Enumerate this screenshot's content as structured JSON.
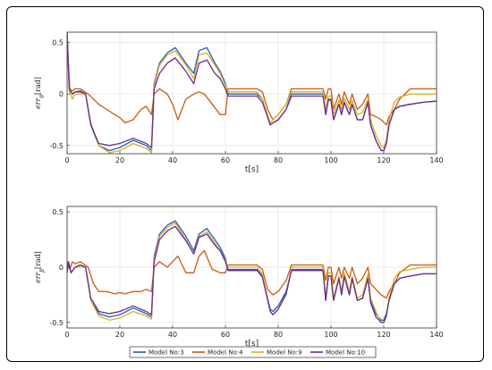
{
  "chart_data": [
    {
      "type": "line",
      "ylabel": "err_θ[rad]",
      "ylabel_parts": {
        "base": "err",
        "sub": "θ",
        "unit": "[rad]"
      },
      "xlabel": "t[s]",
      "xlim": [
        0,
        140
      ],
      "ylim": [
        -0.58,
        0.6
      ],
      "xticks": [
        0,
        20,
        40,
        60,
        80,
        100,
        120,
        140
      ],
      "yticks": [
        -0.5,
        0,
        0.5
      ],
      "grid": true,
      "series": [
        {
          "name": "Model No:3",
          "color": "#1f5fbf",
          "x": [
            0,
            0.8,
            2,
            3,
            5,
            7,
            9,
            12,
            16,
            20,
            25,
            30,
            32,
            33,
            35,
            38,
            41,
            45,
            48,
            50,
            53,
            56,
            58,
            60,
            61,
            64,
            68,
            72,
            74,
            77,
            78,
            80,
            83,
            85,
            97,
            98,
            99,
            100,
            101,
            103,
            104,
            105,
            107,
            108,
            110,
            112,
            114,
            115,
            117,
            119,
            120,
            121,
            122,
            124,
            126,
            130,
            135,
            140
          ],
          "y": [
            0.6,
            0.05,
            0,
            0.02,
            0.03,
            0,
            -0.3,
            -0.5,
            -0.55,
            -0.52,
            -0.45,
            -0.5,
            -0.55,
            0.1,
            0.3,
            0.4,
            0.45,
            0.3,
            0.2,
            0.42,
            0.45,
            0.3,
            0.22,
            0.1,
            0,
            0,
            0,
            0,
            -0.05,
            -0.3,
            -0.28,
            -0.25,
            -0.15,
            0,
            0,
            -0.2,
            -0.05,
            -0.05,
            -0.25,
            -0.1,
            -0.2,
            -0.08,
            -0.2,
            -0.1,
            -0.25,
            -0.25,
            -0.08,
            -0.3,
            -0.45,
            -0.55,
            -0.55,
            -0.48,
            -0.3,
            -0.15,
            -0.12,
            -0.1,
            -0.08,
            -0.07
          ]
        },
        {
          "name": "Model No:4",
          "color": "#c95a14",
          "x": [
            0,
            1,
            2,
            3,
            5,
            8,
            10,
            12,
            15,
            18,
            20,
            22,
            25,
            28,
            30,
            32,
            33,
            35,
            38,
            40,
            42,
            45,
            48,
            50,
            52,
            55,
            58,
            60,
            61,
            64,
            68,
            72,
            74,
            76,
            78,
            80,
            83,
            85,
            97,
            98,
            99,
            100,
            101,
            103,
            104,
            105,
            107,
            108,
            110,
            112,
            114,
            115,
            117,
            119,
            121,
            122,
            124,
            126,
            130,
            135,
            140
          ],
          "y": [
            0.55,
            0.05,
            0.03,
            0.05,
            0.05,
            0,
            -0.05,
            -0.1,
            -0.15,
            -0.2,
            -0.23,
            -0.28,
            -0.25,
            -0.15,
            -0.12,
            -0.2,
            0,
            0.05,
            0,
            -0.1,
            -0.25,
            -0.05,
            0,
            0.02,
            0,
            -0.1,
            -0.2,
            -0.2,
            0.05,
            0.05,
            0.05,
            0.05,
            0.02,
            -0.15,
            -0.25,
            -0.2,
            -0.1,
            0.05,
            0.05,
            -0.05,
            0.05,
            0.05,
            -0.15,
            0,
            -0.1,
            0.02,
            -0.1,
            0,
            -0.15,
            -0.1,
            0,
            -0.2,
            -0.22,
            -0.25,
            -0.3,
            -0.22,
            -0.15,
            -0.05,
            0.05,
            0.05,
            0.05
          ]
        },
        {
          "name": "Model No:9",
          "color": "#d8b11e",
          "x": [
            0,
            0.8,
            2,
            3,
            5,
            7,
            9,
            12,
            16,
            20,
            25,
            30,
            32,
            33,
            35,
            38,
            41,
            45,
            48,
            50,
            53,
            56,
            58,
            60,
            61,
            64,
            68,
            72,
            74,
            77,
            78,
            80,
            83,
            85,
            97,
            98,
            99,
            100,
            101,
            103,
            104,
            105,
            107,
            108,
            110,
            112,
            114,
            115,
            117,
            119,
            120,
            121,
            122,
            124,
            126,
            130,
            135,
            140
          ],
          "y": [
            0.6,
            0.03,
            -0.05,
            0,
            0,
            0,
            -0.28,
            -0.5,
            -0.57,
            -0.55,
            -0.48,
            -0.53,
            -0.57,
            0.08,
            0.28,
            0.38,
            0.42,
            0.28,
            0.15,
            0.38,
            0.4,
            0.28,
            0.2,
            0.08,
            0.02,
            0.02,
            0.02,
            0.02,
            -0.05,
            -0.28,
            -0.25,
            -0.2,
            -0.1,
            0.02,
            0.02,
            -0.15,
            -0.02,
            -0.02,
            -0.2,
            -0.06,
            -0.15,
            -0.04,
            -0.15,
            -0.06,
            -0.2,
            -0.18,
            -0.05,
            -0.25,
            -0.4,
            -0.5,
            -0.52,
            -0.45,
            -0.25,
            -0.08,
            -0.03,
            0,
            0,
            0
          ]
        },
        {
          "name": "Model No:10",
          "color": "#6a2c91",
          "x": [
            0,
            0.8,
            2,
            3,
            5,
            7,
            9,
            12,
            16,
            20,
            25,
            30,
            32,
            33,
            35,
            38,
            41,
            45,
            48,
            50,
            53,
            56,
            58,
            60,
            61,
            64,
            68,
            72,
            74,
            77,
            78,
            80,
            83,
            85,
            97,
            98,
            99,
            100,
            101,
            103,
            104,
            105,
            107,
            108,
            110,
            112,
            114,
            115,
            117,
            119,
            120,
            121,
            122,
            124,
            126,
            130,
            135,
            140
          ],
          "y": [
            0.6,
            0.05,
            0,
            0.02,
            0.02,
            0,
            -0.3,
            -0.48,
            -0.5,
            -0.48,
            -0.43,
            -0.48,
            -0.52,
            0.05,
            0.2,
            0.3,
            0.35,
            0.22,
            0.1,
            0.3,
            0.33,
            0.2,
            0.15,
            0.05,
            -0.02,
            -0.02,
            -0.02,
            -0.02,
            -0.08,
            -0.3,
            -0.28,
            -0.25,
            -0.15,
            -0.02,
            -0.02,
            -0.2,
            -0.06,
            -0.06,
            -0.25,
            -0.1,
            -0.2,
            -0.08,
            -0.2,
            -0.1,
            -0.25,
            -0.25,
            -0.08,
            -0.3,
            -0.45,
            -0.55,
            -0.55,
            -0.48,
            -0.3,
            -0.15,
            -0.12,
            -0.1,
            -0.08,
            -0.07
          ]
        }
      ]
    },
    {
      "type": "line",
      "ylabel": "err_β[rad]",
      "ylabel_parts": {
        "base": "err",
        "sub": "β",
        "unit": "[rad]"
      },
      "xlabel": "t[s]",
      "xlim": [
        0,
        140
      ],
      "ylim": [
        -0.55,
        0.55
      ],
      "xticks": [
        0,
        20,
        40,
        60,
        80,
        100,
        120,
        140
      ],
      "yticks": [
        -0.5,
        0,
        0.5
      ],
      "grid": true,
      "series": [
        {
          "name": "Model No:3",
          "color": "#1f5fbf",
          "x": [
            0,
            0.5,
            1.5,
            3,
            5,
            7,
            9,
            12,
            16,
            20,
            25,
            30,
            32,
            33,
            35,
            38,
            41,
            45,
            48,
            50,
            53,
            56,
            58,
            60,
            61,
            64,
            68,
            72,
            74,
            77,
            78,
            80,
            83,
            85,
            97,
            98,
            99,
            100,
            101,
            103,
            104,
            105,
            107,
            108,
            110,
            112,
            114,
            115,
            117,
            119,
            120,
            121,
            122,
            124,
            126,
            130,
            135,
            140
          ],
          "y": [
            -0.05,
            0.05,
            -0.05,
            0,
            0.02,
            0,
            -0.3,
            -0.42,
            -0.45,
            -0.43,
            -0.37,
            -0.42,
            -0.45,
            0.1,
            0.3,
            0.38,
            0.42,
            0.28,
            0.15,
            0.3,
            0.35,
            0.25,
            0.18,
            0.08,
            -0.02,
            -0.02,
            -0.02,
            -0.02,
            -0.08,
            -0.38,
            -0.4,
            -0.35,
            -0.22,
            -0.02,
            -0.02,
            -0.3,
            -0.08,
            -0.08,
            -0.3,
            -0.1,
            -0.25,
            -0.08,
            -0.25,
            -0.1,
            -0.3,
            -0.28,
            -0.1,
            -0.3,
            -0.42,
            -0.48,
            -0.48,
            -0.42,
            -0.3,
            -0.15,
            -0.1,
            -0.08,
            -0.06,
            -0.06
          ]
        },
        {
          "name": "Model No:4",
          "color": "#c95a14",
          "x": [
            0,
            1,
            2,
            3,
            5,
            8,
            10,
            12,
            15,
            18,
            20,
            22,
            25,
            28,
            30,
            32,
            33,
            35,
            38,
            40,
            42,
            45,
            48,
            50,
            52,
            55,
            58,
            60,
            61,
            64,
            68,
            72,
            74,
            76,
            78,
            80,
            83,
            85,
            97,
            98,
            99,
            100,
            101,
            103,
            104,
            105,
            107,
            108,
            110,
            112,
            114,
            115,
            117,
            119,
            121,
            122,
            124,
            126,
            130,
            135,
            140
          ],
          "y": [
            0.05,
            -0.02,
            0.05,
            0.03,
            0.05,
            0,
            -0.15,
            -0.22,
            -0.22,
            -0.24,
            -0.23,
            -0.24,
            -0.22,
            -0.22,
            -0.2,
            -0.22,
            0,
            0.05,
            0,
            0.05,
            0.1,
            -0.05,
            -0.05,
            0.1,
            0.15,
            -0.02,
            -0.05,
            -0.05,
            0.02,
            0.02,
            0.02,
            0.02,
            -0.02,
            -0.2,
            -0.25,
            -0.22,
            -0.12,
            0.02,
            0.02,
            -0.12,
            0,
            0,
            -0.15,
            0,
            -0.1,
            0,
            -0.1,
            0,
            -0.15,
            -0.1,
            0,
            -0.15,
            -0.2,
            -0.25,
            -0.28,
            -0.22,
            -0.15,
            -0.05,
            0.02,
            0.02,
            0.02
          ]
        },
        {
          "name": "Model No:9",
          "color": "#d8b11e",
          "x": [
            0,
            0.5,
            1.5,
            3,
            5,
            7,
            9,
            12,
            16,
            20,
            25,
            30,
            32,
            33,
            35,
            38,
            41,
            45,
            48,
            50,
            53,
            56,
            58,
            60,
            61,
            64,
            68,
            72,
            74,
            77,
            78,
            80,
            83,
            85,
            97,
            98,
            99,
            100,
            101,
            103,
            104,
            105,
            107,
            108,
            110,
            112,
            114,
            115,
            117,
            119,
            120,
            121,
            122,
            124,
            126,
            130,
            135,
            140
          ],
          "y": [
            -0.05,
            0.05,
            -0.05,
            0,
            0,
            0,
            -0.3,
            -0.44,
            -0.48,
            -0.46,
            -0.4,
            -0.44,
            -0.47,
            0.08,
            0.28,
            0.36,
            0.4,
            0.25,
            0.12,
            0.28,
            0.32,
            0.22,
            0.15,
            0.06,
            0,
            0,
            0,
            0,
            -0.06,
            -0.4,
            -0.43,
            -0.38,
            -0.25,
            0,
            0,
            -0.28,
            -0.05,
            -0.05,
            -0.28,
            -0.08,
            -0.22,
            -0.05,
            -0.22,
            -0.08,
            -0.28,
            -0.25,
            -0.06,
            -0.28,
            -0.4,
            -0.5,
            -0.5,
            -0.44,
            -0.28,
            -0.1,
            -0.04,
            -0.02,
            0,
            0
          ]
        },
        {
          "name": "Model No:10",
          "color": "#6a2c91",
          "x": [
            0,
            0.5,
            1.5,
            3,
            5,
            7,
            9,
            12,
            16,
            20,
            25,
            30,
            32,
            33,
            35,
            38,
            41,
            45,
            48,
            50,
            53,
            56,
            58,
            60,
            61,
            64,
            68,
            72,
            74,
            77,
            78,
            80,
            83,
            85,
            97,
            98,
            99,
            100,
            101,
            103,
            104,
            105,
            107,
            108,
            110,
            112,
            114,
            115,
            117,
            119,
            120,
            121,
            122,
            124,
            126,
            130,
            135,
            140
          ],
          "y": [
            -0.05,
            0.05,
            -0.05,
            0,
            0.02,
            0,
            -0.28,
            -0.4,
            -0.42,
            -0.4,
            -0.35,
            -0.4,
            -0.43,
            0.05,
            0.25,
            0.33,
            0.37,
            0.24,
            0.12,
            0.27,
            0.3,
            0.2,
            0.15,
            0.05,
            -0.03,
            -0.03,
            -0.03,
            -0.03,
            -0.09,
            -0.4,
            -0.43,
            -0.38,
            -0.24,
            -0.03,
            -0.03,
            -0.3,
            -0.08,
            -0.08,
            -0.3,
            -0.1,
            -0.25,
            -0.08,
            -0.25,
            -0.1,
            -0.3,
            -0.28,
            -0.1,
            -0.32,
            -0.45,
            -0.5,
            -0.5,
            -0.44,
            -0.3,
            -0.15,
            -0.1,
            -0.08,
            -0.06,
            -0.06
          ]
        }
      ]
    }
  ],
  "legend": {
    "placement": "bottom",
    "entries": [
      {
        "name": "Model No:3",
        "color": "#1f5fbf"
      },
      {
        "name": "Model No:4",
        "color": "#c95a14"
      },
      {
        "name": "Model No:9",
        "color": "#d8b11e"
      },
      {
        "name": "Model No:10",
        "color": "#6a2c91"
      }
    ]
  }
}
